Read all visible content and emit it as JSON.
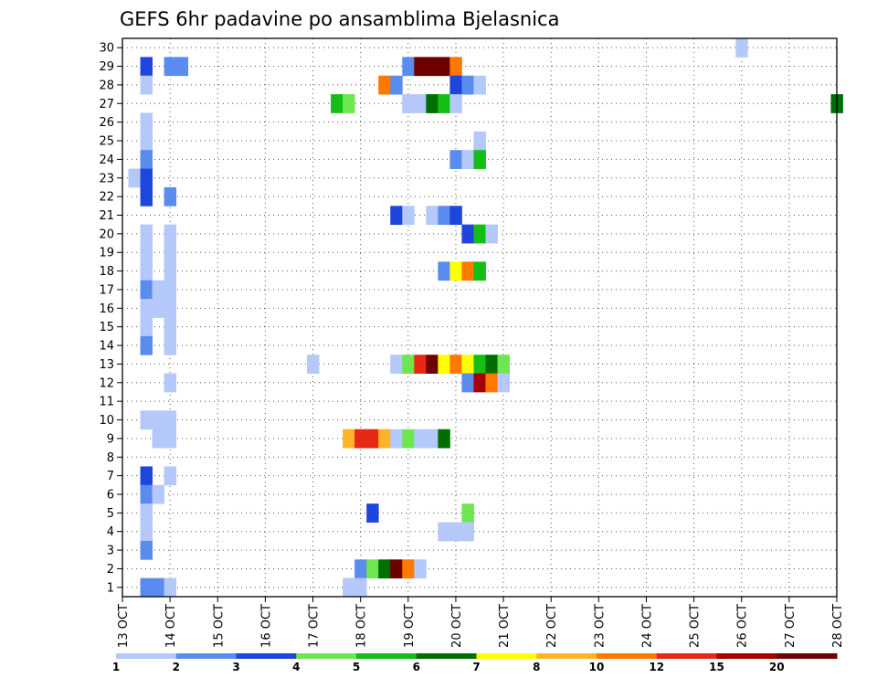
{
  "chart_data": {
    "type": "heatmap",
    "title": "GEFS 6hr padavine po ansamblima Bjelasnica",
    "xlabel": "",
    "ylabel": "",
    "x_ticks": [
      "13 OCT",
      "14 OCT",
      "15 OCT",
      "16 OCT",
      "17 OCT",
      "18 OCT",
      "19 OCT",
      "20 OCT",
      "21 OCT",
      "22 OCT",
      "23 OCT",
      "24 OCT",
      "25 OCT",
      "26 OCT",
      "27 OCT",
      "28 OCT"
    ],
    "y_ticks": [
      1,
      2,
      3,
      4,
      5,
      6,
      7,
      8,
      9,
      10,
      11,
      12,
      13,
      14,
      15,
      16,
      17,
      18,
      19,
      20,
      21,
      22,
      23,
      24,
      25,
      26,
      27,
      28,
      29,
      30
    ],
    "xlim": [
      0,
      60
    ],
    "ylim": [
      0.5,
      30.5
    ],
    "grid": true,
    "x_step_hours": 6,
    "colorbar": {
      "labels": [
        "1",
        "2",
        "3",
        "4",
        "5",
        "6",
        "7",
        "8",
        "10",
        "12",
        "15",
        "20"
      ],
      "colors": [
        "#b4c8fa",
        "#5a8cf0",
        "#1e46dc",
        "#6ee650",
        "#14be14",
        "#006e00",
        "#ffff00",
        "#ffb428",
        "#ff7800",
        "#e62814",
        "#a50000",
        "#6e0000"
      ]
    },
    "cells": [
      {
        "m": 30,
        "s": [
          [
            51,
            1
          ]
        ]
      },
      {
        "m": 29,
        "s": [
          [
            1,
            3
          ],
          [
            3,
            2
          ],
          [
            4,
            2
          ],
          [
            23,
            2
          ],
          [
            24,
            12
          ],
          [
            25,
            12
          ],
          [
            26,
            12
          ],
          [
            27,
            9
          ]
        ]
      },
      {
        "m": 28,
        "s": [
          [
            1,
            1
          ],
          [
            21,
            9
          ],
          [
            22,
            2
          ],
          [
            27,
            3
          ],
          [
            28,
            2
          ],
          [
            29,
            1
          ]
        ]
      },
      {
        "m": 27,
        "s": [
          [
            17,
            5
          ],
          [
            18,
            4
          ],
          [
            23,
            1
          ],
          [
            24,
            1
          ],
          [
            25,
            6
          ],
          [
            26,
            5
          ],
          [
            27,
            1
          ],
          [
            59,
            6
          ]
        ]
      },
      {
        "m": 26,
        "s": [
          [
            1,
            1
          ]
        ]
      },
      {
        "m": 25,
        "s": [
          [
            1,
            1
          ],
          [
            29,
            1
          ]
        ]
      },
      {
        "m": 24,
        "s": [
          [
            1,
            2
          ],
          [
            27,
            2
          ],
          [
            28,
            1
          ],
          [
            29,
            5
          ]
        ]
      },
      {
        "m": 23,
        "s": [
          [
            0,
            1
          ],
          [
            1,
            3
          ]
        ]
      },
      {
        "m": 22,
        "s": [
          [
            1,
            3
          ],
          [
            3,
            2
          ]
        ]
      },
      {
        "m": 21,
        "s": [
          [
            22,
            3
          ],
          [
            23,
            1
          ],
          [
            25,
            1
          ],
          [
            26,
            2
          ],
          [
            27,
            3
          ]
        ]
      },
      {
        "m": 20,
        "s": [
          [
            1,
            1
          ],
          [
            3,
            1
          ],
          [
            28,
            3
          ],
          [
            29,
            5
          ],
          [
            30,
            1
          ]
        ]
      },
      {
        "m": 19,
        "s": [
          [
            1,
            1
          ],
          [
            3,
            1
          ]
        ]
      },
      {
        "m": 18,
        "s": [
          [
            1,
            1
          ],
          [
            3,
            1
          ],
          [
            26,
            2
          ],
          [
            27,
            7
          ],
          [
            28,
            9
          ],
          [
            29,
            5
          ]
        ]
      },
      {
        "m": 17,
        "s": [
          [
            1,
            2
          ],
          [
            2,
            1
          ],
          [
            3,
            1
          ]
        ]
      },
      {
        "m": 16,
        "s": [
          [
            1,
            1
          ],
          [
            2,
            1
          ],
          [
            3,
            1
          ]
        ]
      },
      {
        "m": 15,
        "s": [
          [
            1,
            1
          ],
          [
            3,
            1
          ]
        ]
      },
      {
        "m": 14,
        "s": [
          [
            1,
            2
          ],
          [
            3,
            1
          ]
        ]
      },
      {
        "m": 13,
        "s": [
          [
            15,
            1
          ],
          [
            22,
            1
          ],
          [
            23,
            4
          ],
          [
            24,
            10
          ],
          [
            25,
            12
          ],
          [
            26,
            7
          ],
          [
            27,
            9
          ],
          [
            28,
            7
          ],
          [
            29,
            5
          ],
          [
            30,
            6
          ],
          [
            31,
            4
          ]
        ]
      },
      {
        "m": 12,
        "s": [
          [
            3,
            1
          ],
          [
            28,
            2
          ],
          [
            29,
            11
          ],
          [
            30,
            9
          ],
          [
            31,
            1
          ]
        ]
      },
      {
        "m": 10,
        "s": [
          [
            1,
            1
          ],
          [
            2,
            1
          ],
          [
            3,
            1
          ]
        ]
      },
      {
        "m": 9,
        "s": [
          [
            2,
            1
          ],
          [
            3,
            1
          ],
          [
            18,
            8
          ],
          [
            19,
            10
          ],
          [
            20,
            10
          ],
          [
            21,
            8
          ],
          [
            22,
            1
          ],
          [
            23,
            4
          ],
          [
            24,
            1
          ],
          [
            25,
            1
          ],
          [
            26,
            6
          ]
        ]
      },
      {
        "m": 7,
        "s": [
          [
            1,
            3
          ],
          [
            3,
            1
          ]
        ]
      },
      {
        "m": 6,
        "s": [
          [
            1,
            2
          ],
          [
            2,
            1
          ]
        ]
      },
      {
        "m": 5,
        "s": [
          [
            1,
            1
          ],
          [
            20,
            3
          ],
          [
            28,
            4
          ]
        ]
      },
      {
        "m": 4,
        "s": [
          [
            1,
            1
          ],
          [
            26,
            1
          ],
          [
            27,
            1
          ],
          [
            28,
            1
          ]
        ]
      },
      {
        "m": 3,
        "s": [
          [
            1,
            2
          ]
        ]
      },
      {
        "m": 2,
        "s": [
          [
            19,
            2
          ],
          [
            20,
            4
          ],
          [
            21,
            6
          ],
          [
            22,
            12
          ],
          [
            23,
            9
          ],
          [
            24,
            1
          ]
        ]
      },
      {
        "m": 1,
        "s": [
          [
            1,
            2
          ],
          [
            2,
            2
          ],
          [
            3,
            1
          ],
          [
            18,
            1
          ],
          [
            19,
            1
          ]
        ]
      }
    ]
  }
}
